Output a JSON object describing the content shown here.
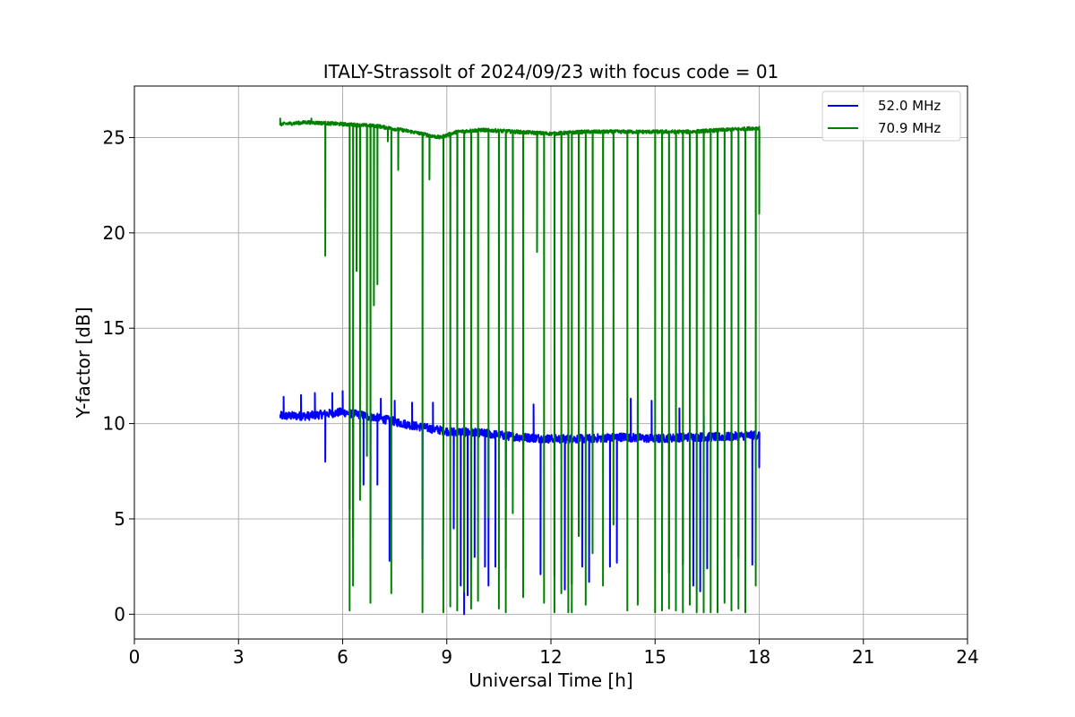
{
  "chart_data": {
    "type": "line",
    "title": "ITALY-Strassolt of 2024/09/23 with focus code = 01",
    "xlabel": "Universal Time [h]",
    "ylabel": "Y-factor [dB]",
    "xlim": [
      0,
      24
    ],
    "ylim": [
      -1.3,
      27.7
    ],
    "xticks": [
      0,
      3,
      6,
      9,
      12,
      15,
      18,
      21,
      24
    ],
    "yticks": [
      0,
      5,
      10,
      15,
      20,
      25
    ],
    "grid": true,
    "legend_position": "top-right",
    "series": [
      {
        "name": "52.0 MHz",
        "color": "#0000ff",
        "baseline": [
          [
            4.2,
            10.4
          ],
          [
            5.0,
            10.4
          ],
          [
            6.0,
            10.6
          ],
          [
            7.0,
            10.3
          ],
          [
            8.0,
            9.9
          ],
          [
            9.0,
            9.6
          ],
          [
            10.0,
            9.5
          ],
          [
            11.0,
            9.3
          ],
          [
            12.0,
            9.2
          ],
          [
            13.0,
            9.2
          ],
          [
            14.0,
            9.3
          ],
          [
            15.0,
            9.2
          ],
          [
            16.0,
            9.3
          ],
          [
            17.0,
            9.3
          ],
          [
            18.0,
            9.4
          ]
        ],
        "spikes": [
          [
            4.3,
            11.4
          ],
          [
            4.8,
            11.5
          ],
          [
            5.2,
            11.6
          ],
          [
            5.7,
            11.6
          ],
          [
            6.0,
            11.7
          ],
          [
            6.6,
            11.5
          ],
          [
            7.1,
            11.3
          ],
          [
            7.5,
            11.2
          ],
          [
            8.0,
            11.1
          ],
          [
            8.6,
            11.1
          ],
          [
            9.2,
            11.1
          ],
          [
            10.7,
            11.0
          ],
          [
            11.5,
            11.0
          ],
          [
            12.6,
            11.1
          ],
          [
            13.2,
            11.1
          ],
          [
            14.3,
            11.3
          ],
          [
            14.5,
            11.1
          ],
          [
            14.9,
            11.2
          ],
          [
            15.7,
            10.8
          ],
          [
            16.4,
            10.7
          ],
          [
            17.6,
            10.5
          ]
        ],
        "dips": [
          [
            5.5,
            8.0
          ],
          [
            6.2,
            5.5
          ],
          [
            6.3,
            4.0
          ],
          [
            6.6,
            6.8
          ],
          [
            6.8,
            2.8
          ],
          [
            7.0,
            6.8
          ],
          [
            7.35,
            2.8
          ],
          [
            8.3,
            2.9
          ],
          [
            9.2,
            4.5
          ],
          [
            9.4,
            1.5
          ],
          [
            9.5,
            0.0
          ],
          [
            9.6,
            1.0
          ],
          [
            9.7,
            2.3
          ],
          [
            9.8,
            3.0
          ],
          [
            10.1,
            2.5
          ],
          [
            10.2,
            1.5
          ],
          [
            10.4,
            2.5
          ],
          [
            10.7,
            2.4
          ],
          [
            11.2,
            3.0
          ],
          [
            11.7,
            2.1
          ],
          [
            12.1,
            2.0
          ],
          [
            12.4,
            1.3
          ],
          [
            12.6,
            1.6
          ],
          [
            12.9,
            2.5
          ],
          [
            13.1,
            1.7
          ],
          [
            13.7,
            2.5
          ],
          [
            13.9,
            2.7
          ],
          [
            15.2,
            3.0
          ],
          [
            15.4,
            2.2
          ],
          [
            15.8,
            2.6
          ],
          [
            16.1,
            1.5
          ],
          [
            16.3,
            1.2
          ],
          [
            16.5,
            2.4
          ],
          [
            16.8,
            1.3
          ],
          [
            17.2,
            2.0
          ],
          [
            17.4,
            3.0
          ],
          [
            17.6,
            2.8
          ],
          [
            17.8,
            2.6
          ],
          [
            18.0,
            7.7
          ]
        ]
      },
      {
        "name": "70.9 MHz",
        "color": "#008000",
        "baseline": [
          [
            4.2,
            25.7
          ],
          [
            5.0,
            25.8
          ],
          [
            6.0,
            25.7
          ],
          [
            7.0,
            25.6
          ],
          [
            8.0,
            25.3
          ],
          [
            8.8,
            25.0
          ],
          [
            9.3,
            25.3
          ],
          [
            10.0,
            25.4
          ],
          [
            11.0,
            25.3
          ],
          [
            12.0,
            25.2
          ],
          [
            13.0,
            25.3
          ],
          [
            14.0,
            25.3
          ],
          [
            15.0,
            25.3
          ],
          [
            16.0,
            25.3
          ],
          [
            17.0,
            25.4
          ],
          [
            18.0,
            25.5
          ]
        ],
        "spikes": [
          [
            4.2,
            26.0
          ],
          [
            5.1,
            26.0
          ],
          [
            11.6,
            26.4
          ]
        ],
        "dips": [
          [
            5.5,
            18.8
          ],
          [
            6.2,
            0.2
          ],
          [
            6.3,
            1.5
          ],
          [
            6.4,
            18.0
          ],
          [
            6.5,
            6.0
          ],
          [
            6.7,
            8.3
          ],
          [
            6.8,
            0.6
          ],
          [
            6.9,
            16.2
          ],
          [
            7.0,
            17.3
          ],
          [
            7.3,
            24.8
          ],
          [
            7.4,
            1.1
          ],
          [
            7.6,
            23.3
          ],
          [
            8.3,
            0.1
          ],
          [
            8.5,
            22.8
          ],
          [
            8.9,
            0.1
          ],
          [
            9.1,
            0.4
          ],
          [
            9.3,
            0.2
          ],
          [
            9.5,
            1.2
          ],
          [
            9.7,
            0.3
          ],
          [
            9.9,
            0.7
          ],
          [
            10.2,
            5.1
          ],
          [
            10.5,
            0.3
          ],
          [
            10.7,
            0.1
          ],
          [
            10.9,
            5.3
          ],
          [
            11.2,
            0.9
          ],
          [
            11.6,
            19.0
          ],
          [
            11.8,
            0.6
          ],
          [
            12.1,
            0.1
          ],
          [
            12.3,
            1.1
          ],
          [
            12.5,
            0.1
          ],
          [
            12.6,
            0.1
          ],
          [
            12.8,
            4.1
          ],
          [
            13.0,
            0.5
          ],
          [
            13.2,
            3.2
          ],
          [
            13.5,
            1.5
          ],
          [
            13.8,
            4.7
          ],
          [
            14.2,
            0.2
          ],
          [
            14.5,
            0.5
          ],
          [
            15.0,
            0.1
          ],
          [
            15.2,
            0.2
          ],
          [
            15.4,
            0.3
          ],
          [
            15.6,
            0.2
          ],
          [
            15.8,
            0.1
          ],
          [
            16.0,
            0.5
          ],
          [
            16.2,
            0.1
          ],
          [
            16.4,
            0.1
          ],
          [
            16.6,
            0.1
          ],
          [
            16.8,
            0.1
          ],
          [
            17.0,
            0.6
          ],
          [
            17.2,
            0.2
          ],
          [
            17.4,
            0.3
          ],
          [
            17.6,
            0.1
          ],
          [
            17.9,
            1.5
          ],
          [
            18.0,
            21.0
          ]
        ]
      }
    ]
  }
}
